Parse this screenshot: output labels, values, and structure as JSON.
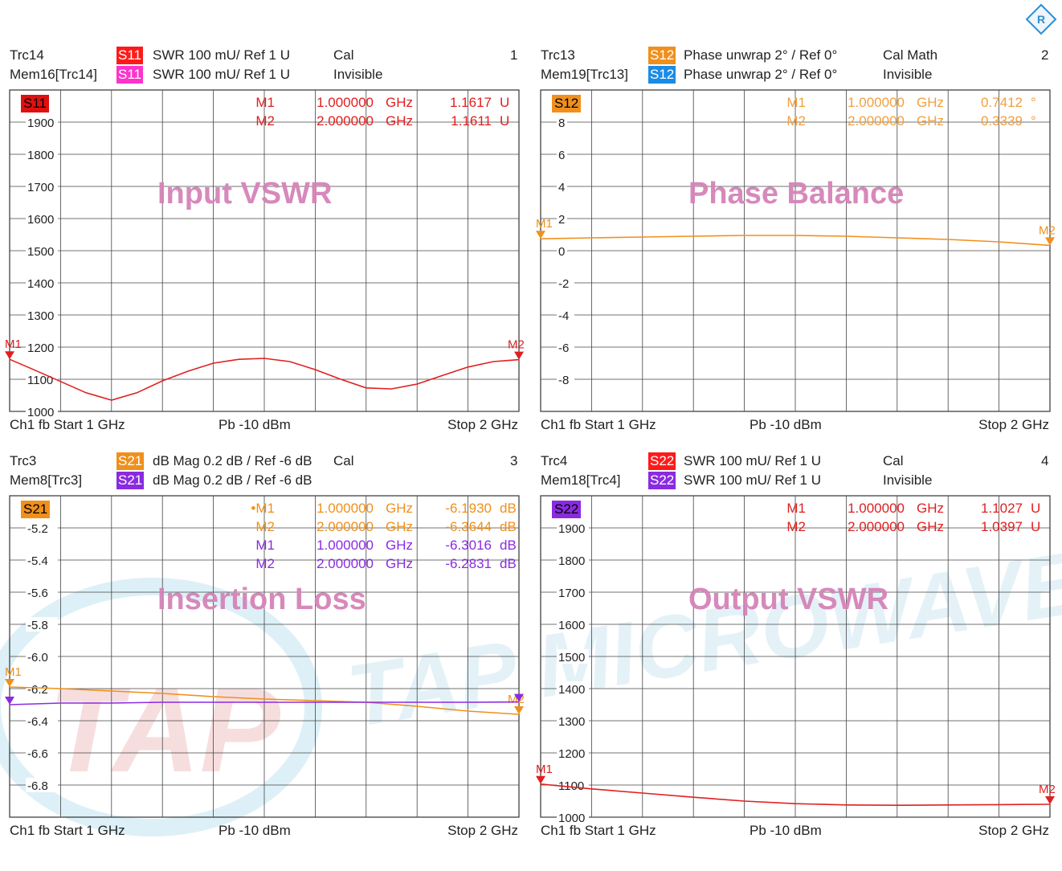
{
  "logo_icon": "rohde-schwarz-logo-icon",
  "watermark": {
    "brand": "TAP MICROWAVE",
    "mark": "TAP",
    "colors": [
      "#cfe9f4",
      "#f3c9c9"
    ]
  },
  "panels": [
    {
      "id": "p1",
      "header": {
        "trc_a": "Trc14",
        "trc_b": "Mem16[Trc14]",
        "badge_a": "S11",
        "badge_b": "S11",
        "fmt_a": "SWR  100 mU/  Ref 1 U",
        "fmt_b": "SWR  100 mU/  Ref 1 U",
        "cal_a": "Cal",
        "cal_b": "Invisible",
        "num": "1",
        "badge_a_color": "#ff1a1a",
        "badge_b_color": "#ff33cc"
      },
      "trace_badge": {
        "label": "S11",
        "color": "#e01010"
      },
      "title": "Input VSWR",
      "markers": [
        {
          "name": "M1",
          "x": "1.000000",
          "unit": "GHz",
          "value": "1.1617",
          "vunit": "U",
          "color": "#e02020"
        },
        {
          "name": "M2",
          "x": "2.000000",
          "unit": "GHz",
          "value": "1.1611",
          "vunit": "U",
          "color": "#e02020"
        }
      ],
      "footer": {
        "left": "Ch1  fb  Start  1 GHz",
        "mid": "Pb  -10 dBm",
        "right": "Stop  2 GHz"
      },
      "chart_data": {
        "type": "line",
        "xlim": [
          1,
          2
        ],
        "ylim": [
          1000,
          2000
        ],
        "ytick_labels": [
          "1900",
          "1800",
          "1700",
          "1600",
          "1500",
          "1400",
          "1300",
          "1200",
          "1100",
          "1000"
        ],
        "yticks": [
          1900,
          1800,
          1700,
          1600,
          1500,
          1400,
          1300,
          1200,
          1100,
          1000
        ],
        "series": [
          {
            "color": "#e02020",
            "x": [
              1,
              1.05,
              1.1,
              1.15,
              1.2,
              1.25,
              1.3,
              1.35,
              1.4,
              1.45,
              1.5,
              1.55,
              1.6,
              1.65,
              1.7,
              1.75,
              1.8,
              1.85,
              1.9,
              1.95,
              2
            ],
            "y": [
              1162,
              1128,
              1093,
              1058,
              1035,
              1058,
              1095,
              1125,
              1150,
              1162,
              1165,
              1155,
              1130,
              1100,
              1073,
              1070,
              1085,
              1112,
              1138,
              1155,
              1161
            ]
          }
        ],
        "marker_labels": [
          "M1",
          "M2"
        ]
      }
    },
    {
      "id": "p2",
      "header": {
        "trc_a": "Trc13",
        "trc_b": "Mem19[Trc13]",
        "badge_a": "S12",
        "badge_b": "S12",
        "fmt_a": "Phase unwrap  2° /  Ref 0°",
        "fmt_b": "Phase unwrap  2° /  Ref 0°",
        "cal_a": "Cal Math",
        "cal_b": "Invisible",
        "num": "2",
        "badge_a_color": "#f0901c",
        "badge_b_color": "#1a8ce6"
      },
      "trace_badge": {
        "label": "S12",
        "color": "#f0901c"
      },
      "title": "Phase Balance",
      "markers": [
        {
          "name": "M1",
          "x": "1.000000",
          "unit": "GHz",
          "value": "0.7412",
          "vunit": "°",
          "color": "#f0a040"
        },
        {
          "name": "M2",
          "x": "2.000000",
          "unit": "GHz",
          "value": "0.3339",
          "vunit": "°",
          "color": "#f0a040"
        }
      ],
      "footer": {
        "left": "Ch1  fb  Start  1 GHz",
        "mid": "Pb  -10 dBm",
        "right": "Stop  2 GHz"
      },
      "chart_data": {
        "type": "line",
        "xlim": [
          1,
          2
        ],
        "ylim": [
          -10,
          10
        ],
        "ytick_labels": [
          "8",
          "6",
          "4",
          "2",
          "0",
          "-2",
          "-4",
          "-6",
          "-8"
        ],
        "yticks": [
          8,
          6,
          4,
          2,
          0,
          -2,
          -4,
          -6,
          -8
        ],
        "series": [
          {
            "color": "#f0901c",
            "x": [
              1,
              1.1,
              1.2,
              1.3,
              1.4,
              1.5,
              1.6,
              1.7,
              1.8,
              1.9,
              2
            ],
            "y": [
              0.74,
              0.8,
              0.85,
              0.9,
              0.95,
              0.95,
              0.9,
              0.8,
              0.7,
              0.55,
              0.33
            ]
          }
        ],
        "marker_labels": [
          "M1",
          "M2"
        ]
      }
    },
    {
      "id": "p3",
      "header": {
        "trc_a": "Trc3",
        "trc_b": "Mem8[Trc3]",
        "badge_a": "S21",
        "badge_b": "S21",
        "fmt_a": "dB Mag  0.2 dB /  Ref -6 dB",
        "fmt_b": "dB Mag  0.2 dB /  Ref -6 dB",
        "cal_a": "Cal",
        "cal_b": "",
        "num": "3",
        "badge_a_color": "#f0901c",
        "badge_b_color": "#8a2be2"
      },
      "trace_badge": {
        "label": "S21",
        "color": "#f0901c"
      },
      "title": "Insertion Loss",
      "markers": [
        {
          "name": "•M1",
          "x": "1.000000",
          "unit": "GHz",
          "value": "-6.1930",
          "vunit": "dB",
          "color": "#f0901c"
        },
        {
          "name": "M2",
          "x": "2.000000",
          "unit": "GHz",
          "value": "-6.3644",
          "vunit": "dB",
          "color": "#f0901c"
        },
        {
          "name": "M1",
          "x": "1.000000",
          "unit": "GHz",
          "value": "-6.3016",
          "vunit": "dB",
          "color": "#8a2be2"
        },
        {
          "name": "M2",
          "x": "2.000000",
          "unit": "GHz",
          "value": "-6.2831",
          "vunit": "dB",
          "color": "#8a2be2"
        }
      ],
      "footer": {
        "left": "Ch1  fb  Start  1 GHz",
        "mid": "Pb  -10 dBm",
        "right": "Stop  2 GHz"
      },
      "chart_data": {
        "type": "line",
        "xlim": [
          1,
          2
        ],
        "ylim": [
          -7,
          -5
        ],
        "ytick_labels": [
          "-5.2",
          "-5.4",
          "-5.6",
          "-5.8",
          "-6.0",
          "-6.2",
          "-6.4",
          "-6.6",
          "-6.8"
        ],
        "yticks": [
          -5.2,
          -5.4,
          -5.6,
          -5.8,
          -6.0,
          -6.2,
          -6.4,
          -6.6,
          -6.8
        ],
        "series": [
          {
            "color": "#f0901c",
            "x": [
              1,
              1.1,
              1.2,
              1.3,
              1.4,
              1.5,
              1.6,
              1.7,
              1.8,
              1.9,
              2
            ],
            "y": [
              -6.19,
              -6.2,
              -6.215,
              -6.23,
              -6.25,
              -6.265,
              -6.275,
              -6.285,
              -6.31,
              -6.34,
              -6.36
            ]
          },
          {
            "color": "#8a2be2",
            "x": [
              1,
              1.1,
              1.2,
              1.3,
              1.4,
              1.5,
              1.6,
              1.7,
              1.8,
              1.9,
              2
            ],
            "y": [
              -6.3,
              -6.29,
              -6.29,
              -6.285,
              -6.285,
              -6.285,
              -6.285,
              -6.285,
              -6.285,
              -6.285,
              -6.283
            ]
          }
        ],
        "marker_labels": [
          "M1",
          "M2"
        ]
      }
    },
    {
      "id": "p4",
      "header": {
        "trc_a": "Trc4",
        "trc_b": "Mem18[Trc4]",
        "badge_a": "S22",
        "badge_b": "S22",
        "fmt_a": "SWR  100 mU/  Ref 1 U",
        "fmt_b": "SWR  100 mU/  Ref 1 U",
        "cal_a": "Cal",
        "cal_b": "Invisible",
        "num": "4",
        "badge_a_color": "#ff1a1a",
        "badge_b_color": "#8a2be2"
      },
      "trace_badge": {
        "label": "S22",
        "color": "#8a2be2"
      },
      "title": "Output VSWR",
      "markers": [
        {
          "name": "M1",
          "x": "1.000000",
          "unit": "GHz",
          "value": "1.1027",
          "vunit": "U",
          "color": "#e02020"
        },
        {
          "name": "M2",
          "x": "2.000000",
          "unit": "GHz",
          "value": "1.0397",
          "vunit": "U",
          "color": "#e02020"
        }
      ],
      "footer": {
        "left": "Ch1  fb  Start  1 GHz",
        "mid": "Pb  -10 dBm",
        "right": "Stop  2 GHz"
      },
      "chart_data": {
        "type": "line",
        "xlim": [
          1,
          2
        ],
        "ylim": [
          1000,
          2000
        ],
        "ytick_labels": [
          "1900",
          "1800",
          "1700",
          "1600",
          "1500",
          "1400",
          "1300",
          "1200",
          "1100",
          "1000"
        ],
        "yticks": [
          1900,
          1800,
          1700,
          1600,
          1500,
          1400,
          1300,
          1200,
          1100,
          1000
        ],
        "series": [
          {
            "color": "#e02020",
            "x": [
              1,
              1.1,
              1.2,
              1.3,
              1.4,
              1.5,
              1.6,
              1.7,
              1.8,
              1.9,
              2
            ],
            "y": [
              1103,
              1088,
              1075,
              1062,
              1050,
              1042,
              1038,
              1037,
              1038,
              1039,
              1040
            ]
          }
        ],
        "marker_labels": [
          "M1",
          "M2"
        ]
      }
    }
  ]
}
